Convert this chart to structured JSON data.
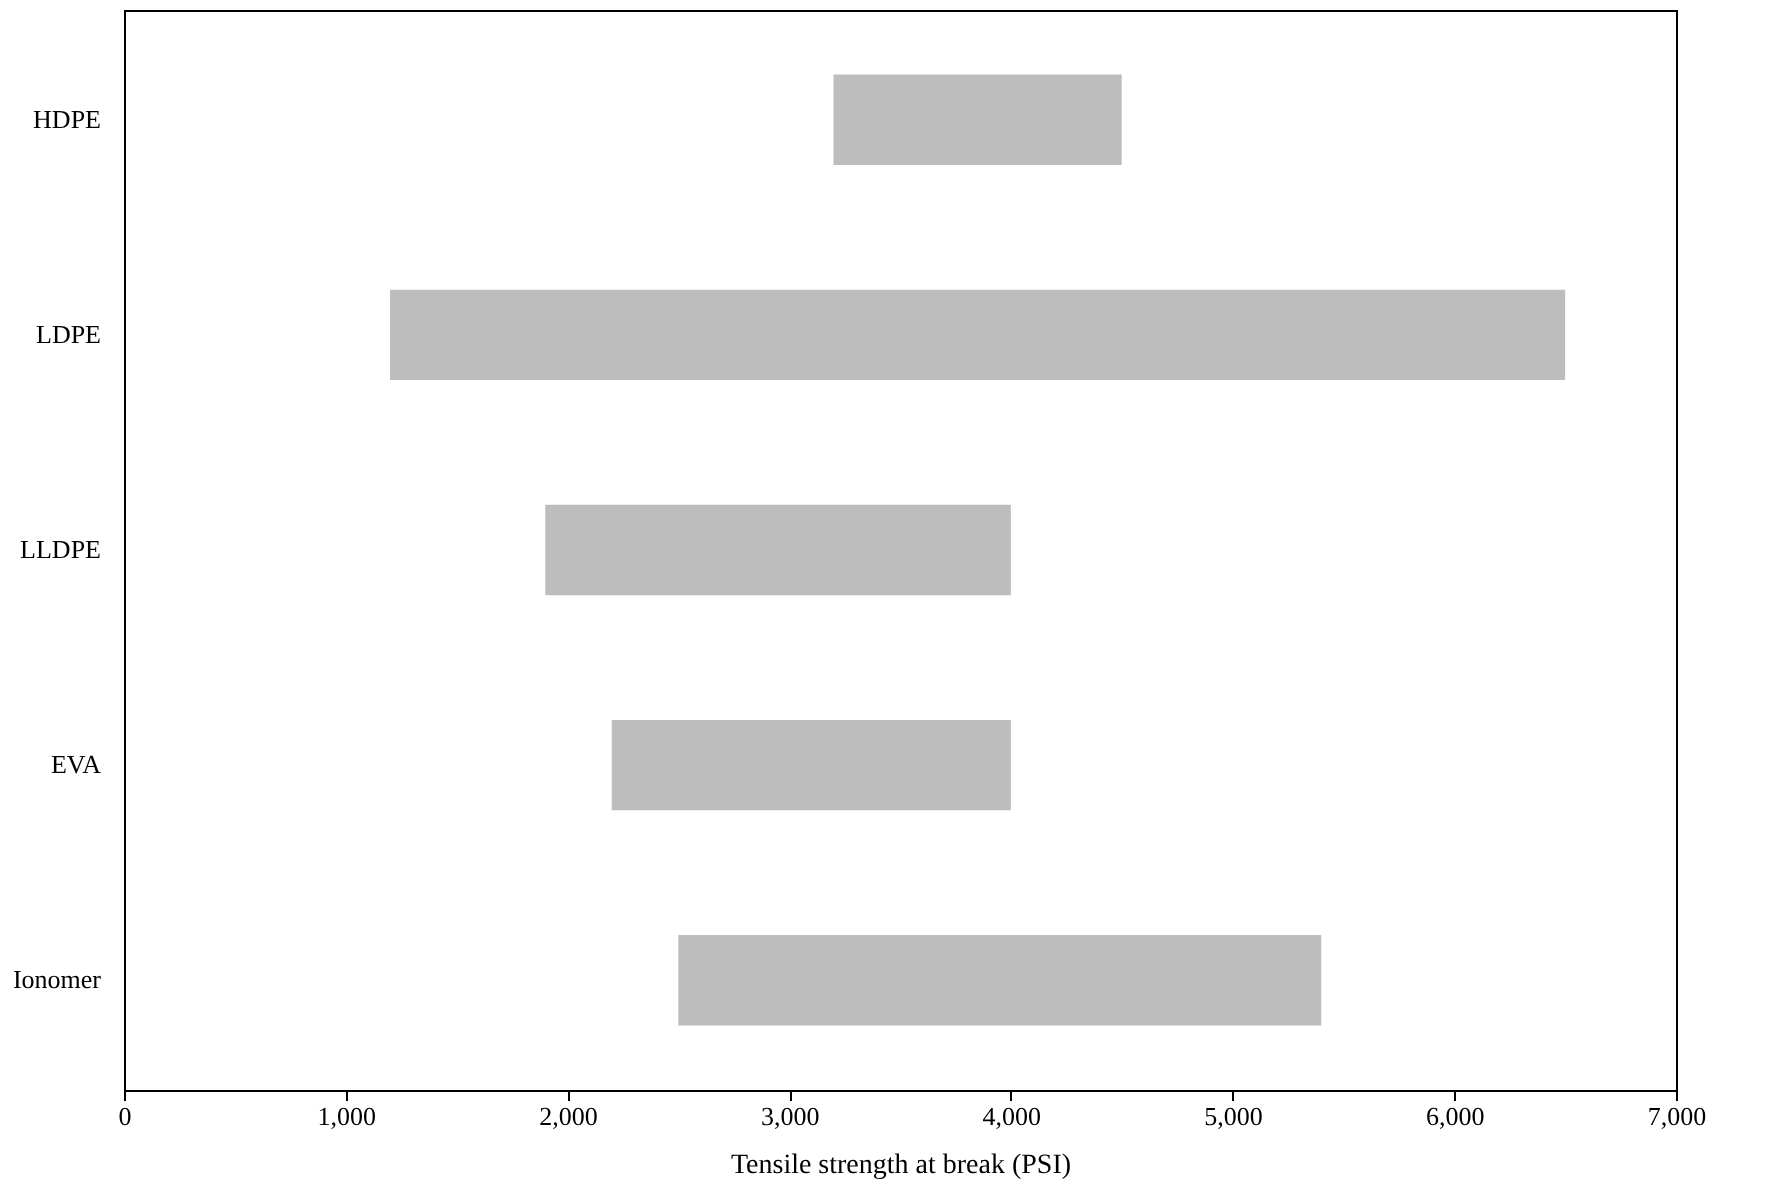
{
  "chart_data": {
    "type": "bar",
    "orientation": "horizontal",
    "xlabel": "Tensile strength at break (PSI)",
    "categories": [
      "HDPE",
      "LDPE",
      "LLDPE",
      "EVA",
      "Ionomer"
    ],
    "base": [
      3200,
      1200,
      1900,
      2200,
      2500
    ],
    "values": [
      1300,
      5300,
      2100,
      1800,
      2900
    ],
    "color": "#bdbdbd",
    "xlim": [
      0,
      7000
    ],
    "xticks": [
      {
        "value": 0,
        "label": "0"
      },
      {
        "value": 1000,
        "label": "1,000"
      },
      {
        "value": 2000,
        "label": "2,000"
      },
      {
        "value": 3000,
        "label": "3,000"
      },
      {
        "value": 4000,
        "label": "4,000"
      },
      {
        "value": 5000,
        "label": "5,000"
      },
      {
        "value": 6000,
        "label": "6,000"
      },
      {
        "value": 7000,
        "label": "7,000"
      }
    ],
    "grid": false
  }
}
